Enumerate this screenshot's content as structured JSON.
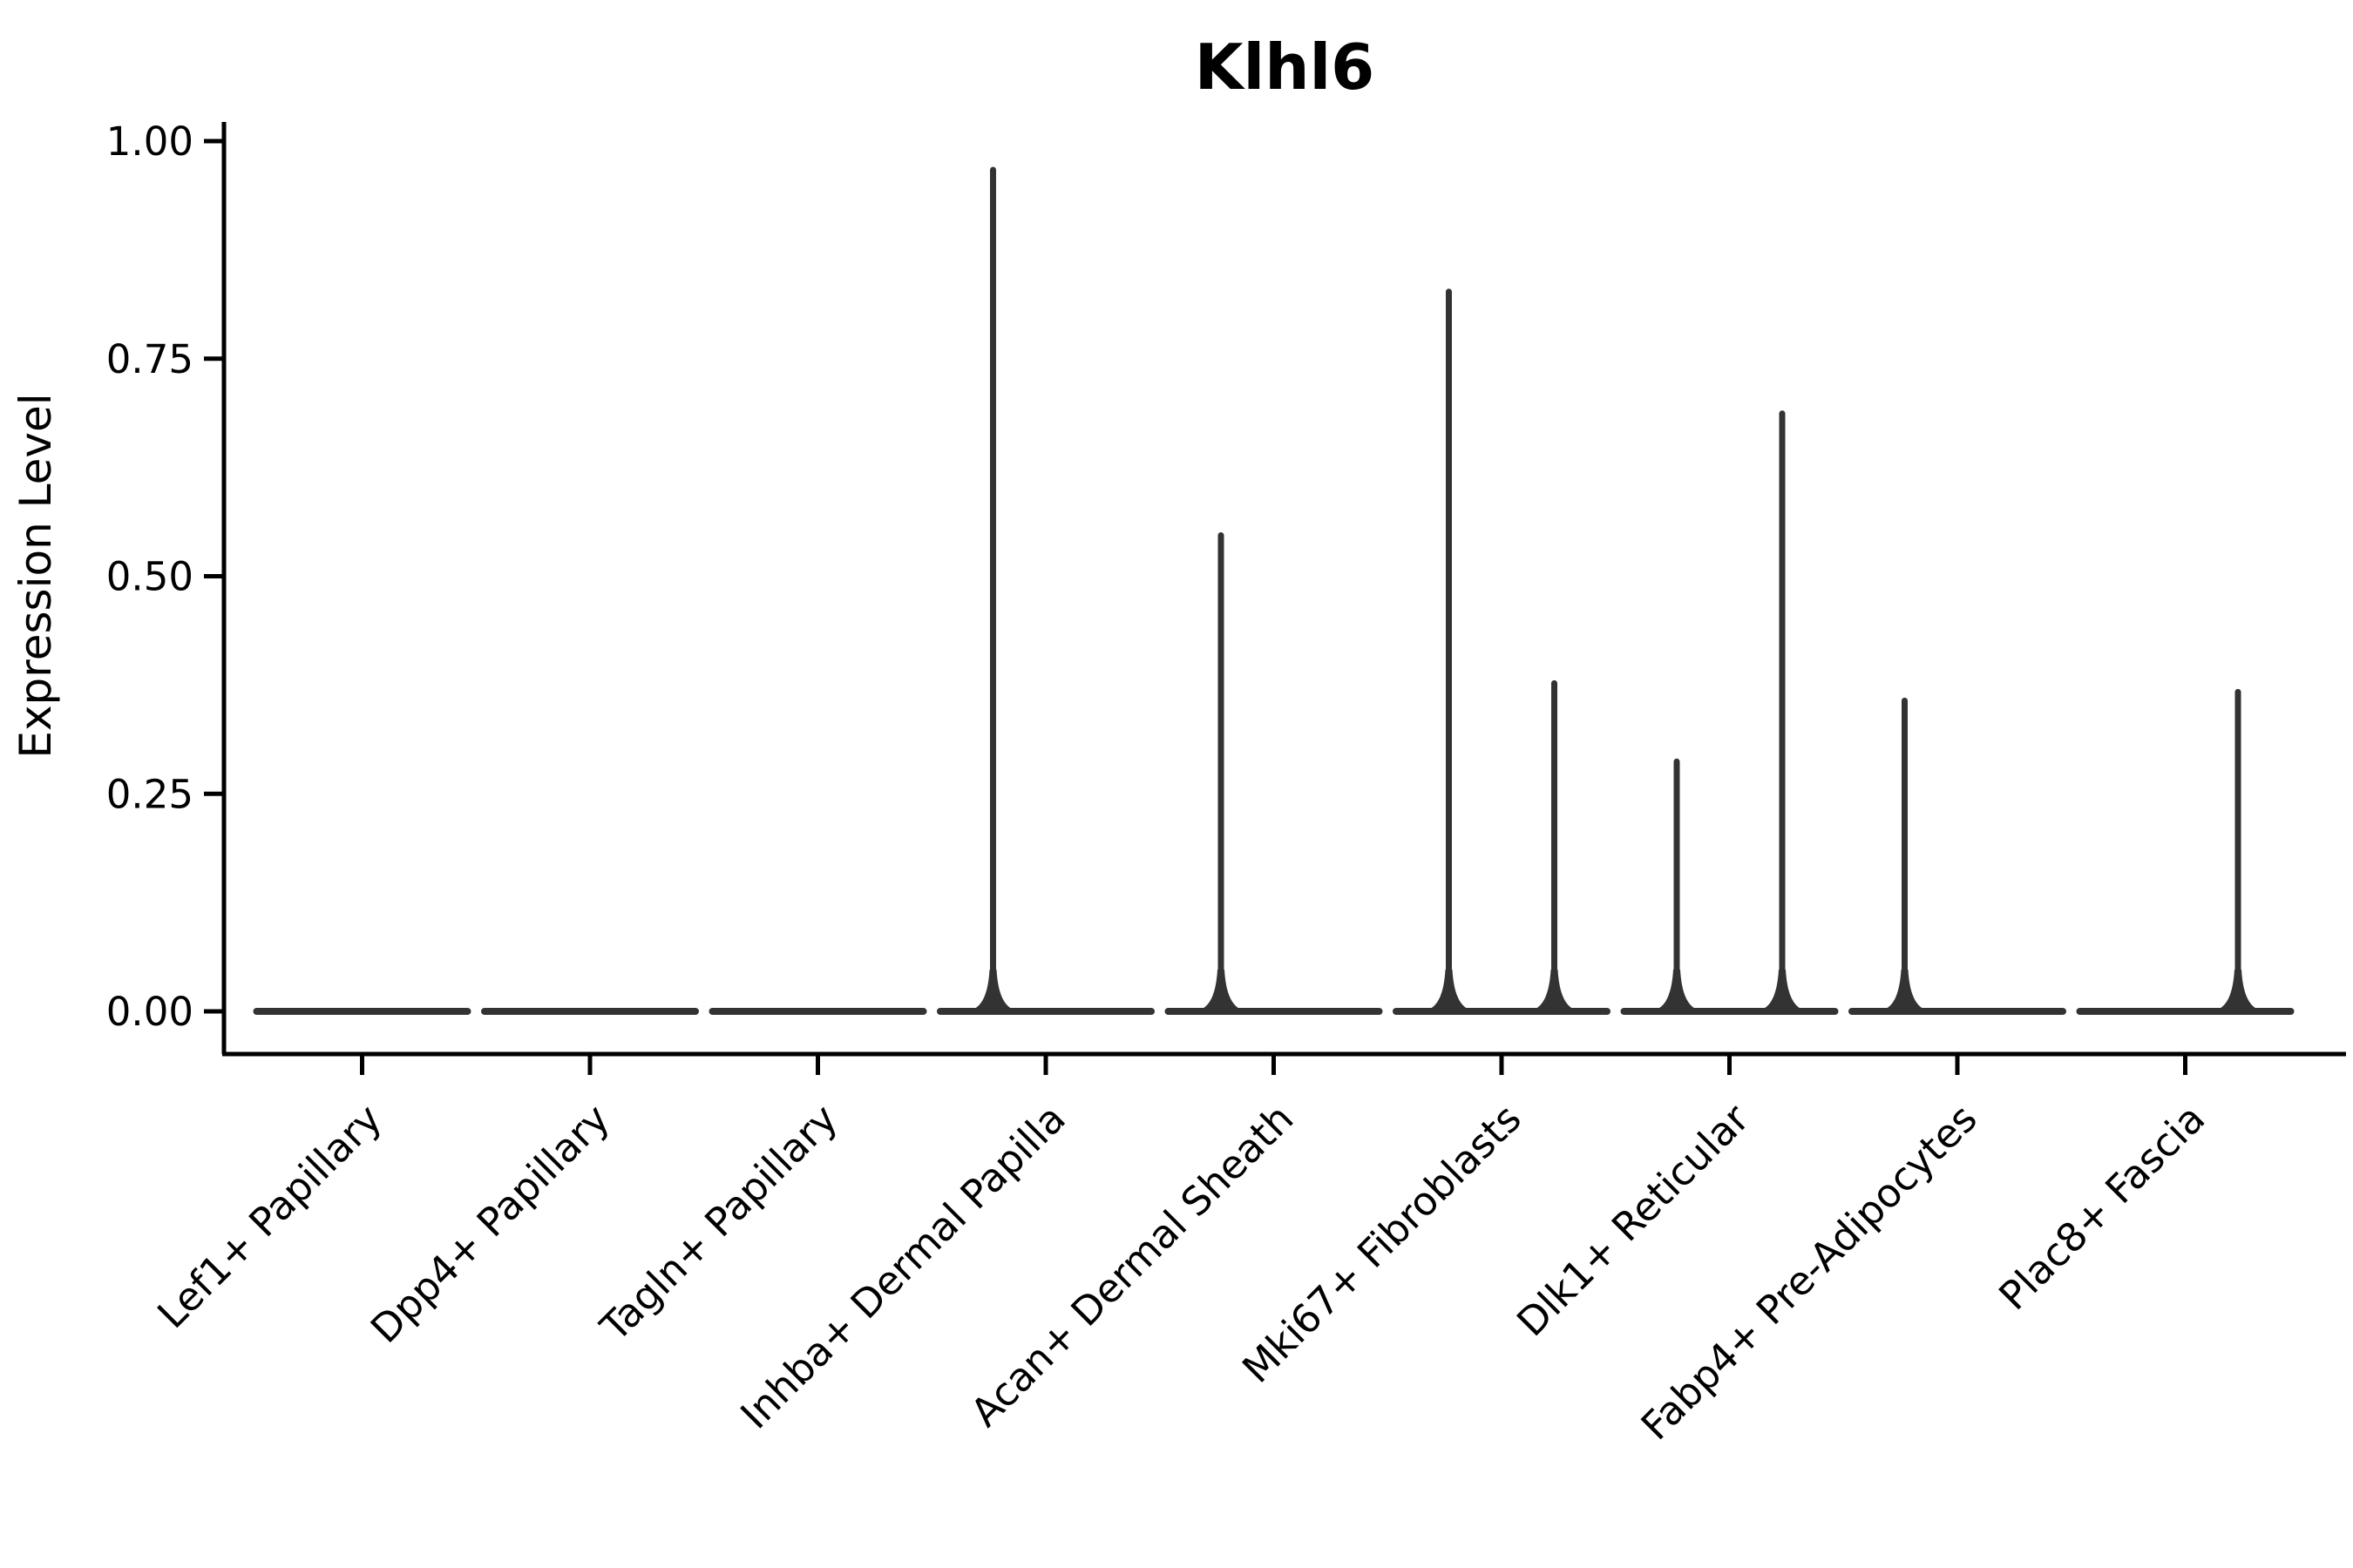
{
  "title": "Klhl6",
  "axes": {
    "ylabel": "Expression Level",
    "xlabel": ""
  },
  "colors": {
    "violin_stroke": "#333333",
    "axis": "#000000",
    "background": "#ffffff"
  },
  "chart_data": {
    "type": "violin",
    "title": "Klhl6",
    "xlabel": "",
    "ylabel": "Expression Level",
    "ylim": [
      0,
      1
    ],
    "grid": false,
    "legend": "none",
    "yticks": [
      {
        "label": "0.00",
        "value": 0.0
      },
      {
        "label": "0.25",
        "value": 0.25
      },
      {
        "label": "0.50",
        "value": 0.5
      },
      {
        "label": "0.75",
        "value": 0.75
      },
      {
        "label": "1.00",
        "value": 1.0
      }
    ],
    "categories": [
      "Lef1+ Papillary",
      "Dpp4+ Papillary",
      "Tagln+ Papillary",
      "Inhba+ Dermal Papilla",
      "Acan+ Dermal Sheath",
      "Mki67+ Fibroblasts",
      "Dlk1+ Reticular",
      "Fabp4+ Pre-Adipocytes",
      "Plac8+ Fascia"
    ],
    "note": "Each category holds two side-by-side collapsed violins; nearly all expression values are 0, max_expression is the top of the thin density spike (0 = flat violin, no spike).",
    "series": [
      {
        "name": "left-violin",
        "max_expression": [
          0,
          0,
          0,
          0.97,
          0.55,
          0.83,
          0.29,
          0.36,
          0
        ]
      },
      {
        "name": "right-violin",
        "max_expression": [
          0,
          0,
          0,
          0,
          0,
          0.38,
          0.69,
          0,
          0.37
        ]
      }
    ]
  }
}
